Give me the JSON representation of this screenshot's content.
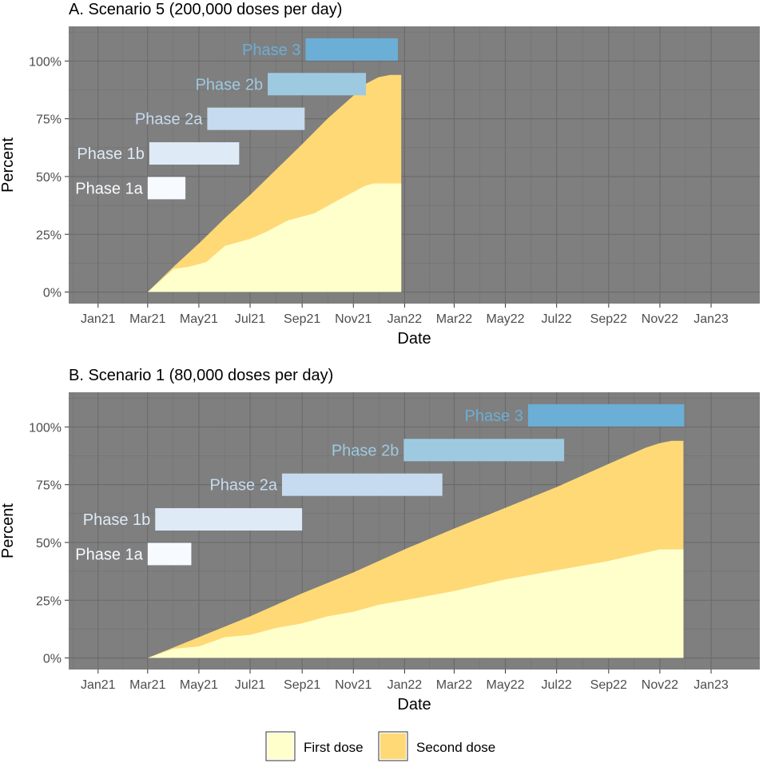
{
  "legend": {
    "items": [
      {
        "label": "First dose",
        "color": "#FFFFCC"
      },
      {
        "label": "Second dose",
        "color": "#FED976"
      }
    ]
  },
  "chart_data": [
    {
      "type": "area",
      "title": "A. Scenario 5 (200,000 doses per day)",
      "xlabel": "Date",
      "ylabel": "Percent",
      "x_ticks": [
        "Jan21",
        "Mar21",
        "May21",
        "Jul21",
        "Sep21",
        "Nov21",
        "Jan22",
        "Mar22",
        "May22",
        "Jul22",
        "Sep22",
        "Nov22",
        "Jan23"
      ],
      "y_ticks": [
        "0%",
        "25%",
        "50%",
        "75%",
        "100%"
      ],
      "ylim": [
        -5,
        115
      ],
      "xlim": [
        "2020-11-27",
        "2023-02-28"
      ],
      "grid": true,
      "background": "#7F7F7F",
      "series": [
        {
          "name": "First dose",
          "color": "#FFFFCC",
          "points": [
            [
              "2021-03-01",
              0
            ],
            [
              "2021-04-01",
              10
            ],
            [
              "2021-04-20",
              11
            ],
            [
              "2021-05-10",
              13
            ],
            [
              "2021-06-01",
              20
            ],
            [
              "2021-07-01",
              23
            ],
            [
              "2021-07-20",
              26
            ],
            [
              "2021-08-15",
              31
            ],
            [
              "2021-09-15",
              34
            ],
            [
              "2021-10-15",
              40
            ],
            [
              "2021-11-15",
              46
            ],
            [
              "2021-11-25",
              47
            ],
            [
              "2021-12-28",
              47
            ]
          ]
        },
        {
          "name": "Second dose",
          "color": "#FED976",
          "points": [
            [
              "2021-03-01",
              0
            ],
            [
              "2021-04-01",
              11
            ],
            [
              "2021-05-01",
              21
            ],
            [
              "2021-06-01",
              32
            ],
            [
              "2021-07-01",
              42
            ],
            [
              "2021-08-01",
              53
            ],
            [
              "2021-09-01",
              64
            ],
            [
              "2021-10-01",
              75
            ],
            [
              "2021-11-01",
              85
            ],
            [
              "2021-11-15",
              90
            ],
            [
              "2021-12-01",
              93
            ],
            [
              "2021-12-15",
              94
            ],
            [
              "2021-12-28",
              94
            ]
          ]
        }
      ],
      "phases": [
        {
          "label": "Phase 1a",
          "start": "2021-03-01",
          "end": "2021-04-15",
          "y_center": 45,
          "color": "#F7FBFF"
        },
        {
          "label": "Phase 1b",
          "start": "2021-03-03",
          "end": "2021-06-18",
          "y_center": 60,
          "color": "#DEEBF7"
        },
        {
          "label": "Phase 2a",
          "start": "2021-05-11",
          "end": "2021-09-04",
          "y_center": 75,
          "color": "#C6DBEF"
        },
        {
          "label": "Phase 2b",
          "start": "2021-07-22",
          "end": "2021-11-16",
          "y_center": 90,
          "color": "#9ECAE1"
        },
        {
          "label": "Phase 3",
          "start": "2021-09-05",
          "end": "2021-12-24",
          "y_center": 105,
          "color": "#6BAED6"
        }
      ]
    },
    {
      "type": "area",
      "title": "B. Scenario 1 (80,000 doses per day)",
      "xlabel": "Date",
      "ylabel": "Percent",
      "x_ticks": [
        "Jan21",
        "Mar21",
        "May21",
        "Jul21",
        "Sep21",
        "Nov21",
        "Jan22",
        "Mar22",
        "May22",
        "Jul22",
        "Sep22",
        "Nov22",
        "Jan23"
      ],
      "y_ticks": [
        "0%",
        "25%",
        "50%",
        "75%",
        "100%"
      ],
      "ylim": [
        -5,
        115
      ],
      "xlim": [
        "2020-11-27",
        "2023-02-28"
      ],
      "grid": true,
      "background": "#7F7F7F",
      "series": [
        {
          "name": "First dose",
          "color": "#FFFFCC",
          "points": [
            [
              "2021-03-01",
              0
            ],
            [
              "2021-04-01",
              4
            ],
            [
              "2021-05-01",
              5
            ],
            [
              "2021-06-01",
              9
            ],
            [
              "2021-07-01",
              10
            ],
            [
              "2021-08-01",
              13
            ],
            [
              "2021-09-01",
              15
            ],
            [
              "2021-10-01",
              18
            ],
            [
              "2021-11-01",
              20
            ],
            [
              "2021-12-01",
              23
            ],
            [
              "2022-01-01",
              25
            ],
            [
              "2022-03-01",
              29
            ],
            [
              "2022-05-01",
              34
            ],
            [
              "2022-07-01",
              38
            ],
            [
              "2022-09-01",
              42
            ],
            [
              "2022-10-20",
              46
            ],
            [
              "2022-11-01",
              47
            ],
            [
              "2022-11-29",
              47
            ]
          ]
        },
        {
          "name": "Second dose",
          "color": "#FED976",
          "points": [
            [
              "2021-03-01",
              0
            ],
            [
              "2021-05-01",
              9
            ],
            [
              "2021-07-01",
              18
            ],
            [
              "2021-09-01",
              28
            ],
            [
              "2021-11-01",
              37
            ],
            [
              "2022-01-01",
              47
            ],
            [
              "2022-03-01",
              56
            ],
            [
              "2022-05-01",
              65
            ],
            [
              "2022-07-01",
              74
            ],
            [
              "2022-09-01",
              84
            ],
            [
              "2022-10-15",
              91
            ],
            [
              "2022-11-01",
              93
            ],
            [
              "2022-11-15",
              94
            ],
            [
              "2022-11-29",
              94
            ]
          ]
        }
      ],
      "phases": [
        {
          "label": "Phase 1a",
          "start": "2021-03-01",
          "end": "2021-04-22",
          "y_center": 45,
          "color": "#F7FBFF"
        },
        {
          "label": "Phase 1b",
          "start": "2021-03-10",
          "end": "2021-09-01",
          "y_center": 60,
          "color": "#DEEBF7"
        },
        {
          "label": "Phase 2a",
          "start": "2021-08-08",
          "end": "2022-02-15",
          "y_center": 75,
          "color": "#C6DBEF"
        },
        {
          "label": "Phase 2b",
          "start": "2021-12-31",
          "end": "2022-07-10",
          "y_center": 90,
          "color": "#9ECAE1"
        },
        {
          "label": "Phase 3",
          "start": "2022-05-28",
          "end": "2022-11-30",
          "y_center": 105,
          "color": "#6BAED6"
        }
      ]
    }
  ]
}
